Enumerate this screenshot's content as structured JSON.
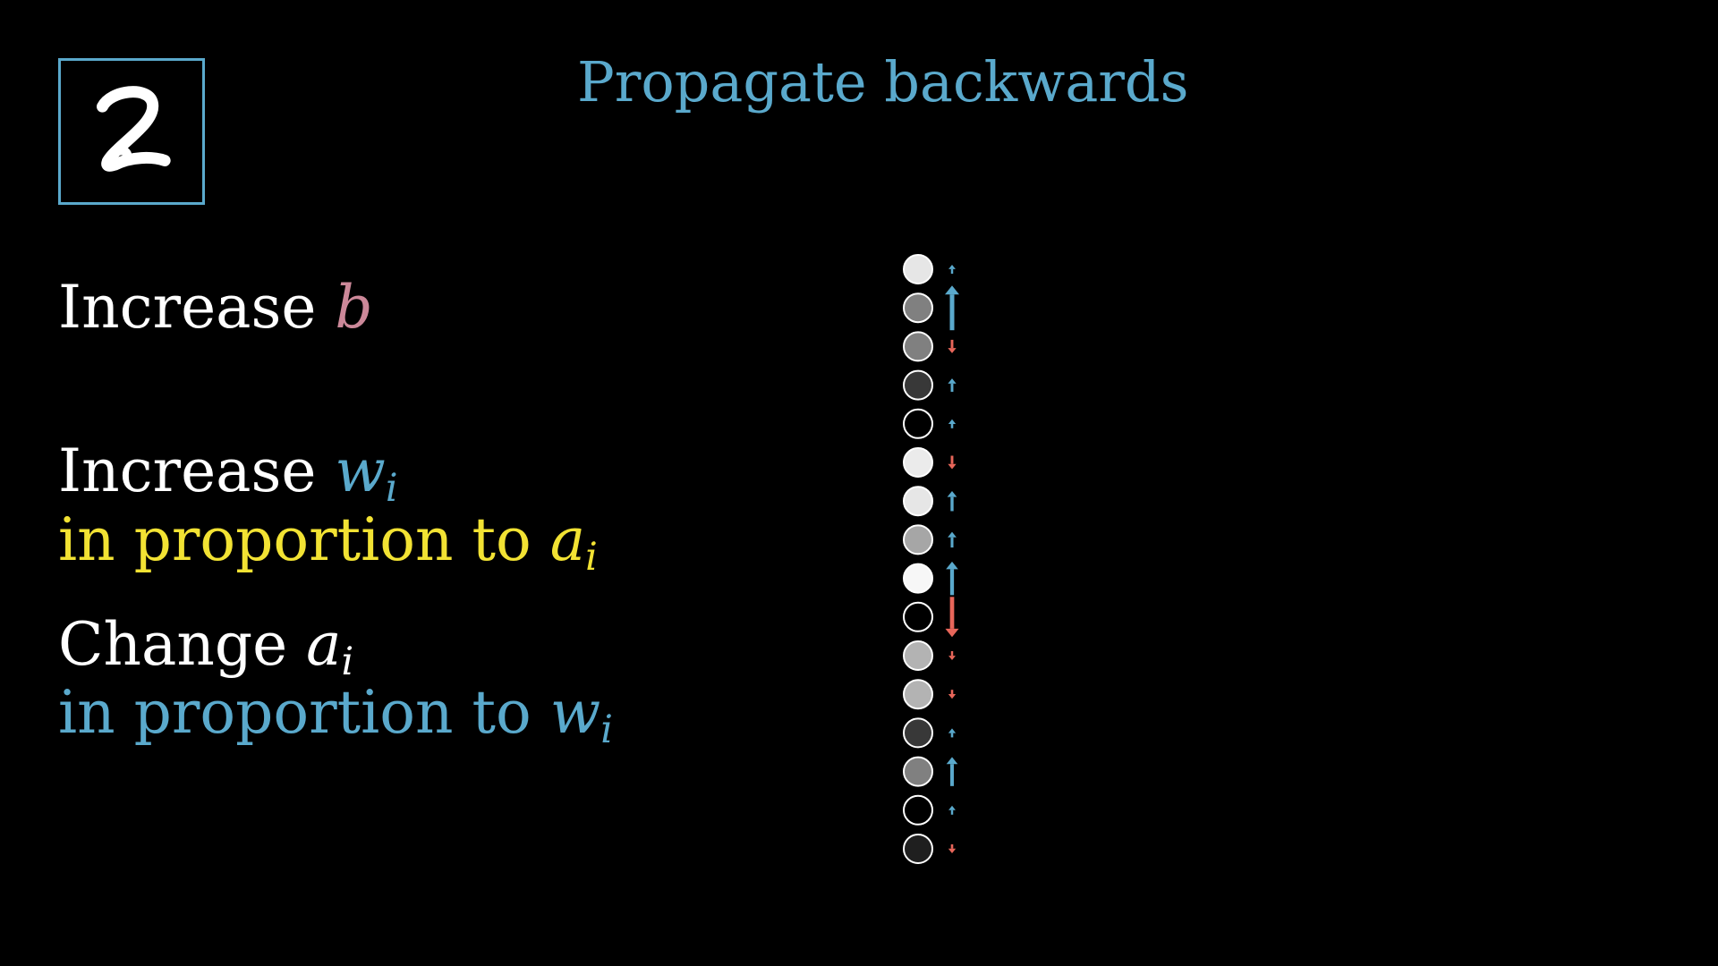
{
  "title": "Propagate backwards",
  "colors": {
    "accent_blue": "#5aa9cc",
    "accent_red": "#e8665a",
    "bias_pink": "#cc8899",
    "yellow": "#f2e233",
    "frame": "#5aa9cc"
  },
  "digit_image": {
    "icon": "handwritten-digit-2-icon"
  },
  "steps": {
    "bias": {
      "verb": "Increase",
      "var": "b"
    },
    "weights": {
      "verb": "Increase",
      "var": "w",
      "sub": "i",
      "line2_text": "in proportion to",
      "line2_var": "a",
      "line2_sub": "i"
    },
    "activations": {
      "verb": "Change",
      "var": "a",
      "sub": "i",
      "line2_text": "in proportion to",
      "line2_var": "w",
      "line2_sub": "i"
    }
  },
  "neurons": [
    {
      "activation": 0.9,
      "nudge": 0.15
    },
    {
      "activation": 0.5,
      "nudge": 1.0
    },
    {
      "activation": 0.5,
      "nudge": -0.3
    },
    {
      "activation": 0.22,
      "nudge": 0.3
    },
    {
      "activation": 0.0,
      "nudge": 0.2
    },
    {
      "activation": 0.92,
      "nudge": -0.3
    },
    {
      "activation": 0.9,
      "nudge": 0.45
    },
    {
      "activation": 0.65,
      "nudge": 0.35
    },
    {
      "activation": 0.97,
      "nudge": 0.75
    },
    {
      "activation": 0.0,
      "nudge": -0.9
    },
    {
      "activation": 0.7,
      "nudge": -0.15
    },
    {
      "activation": 0.7,
      "nudge": -0.2
    },
    {
      "activation": 0.22,
      "nudge": 0.2
    },
    {
      "activation": 0.5,
      "nudge": 0.65
    },
    {
      "activation": 0.0,
      "nudge": 0.15
    },
    {
      "activation": 0.12,
      "nudge": -0.2
    }
  ]
}
